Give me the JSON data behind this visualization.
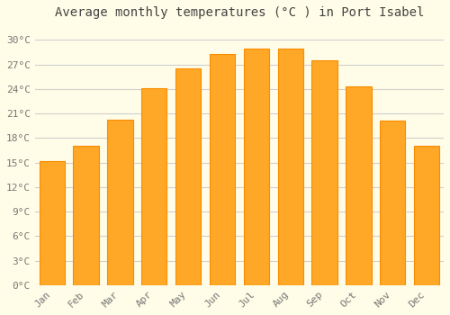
{
  "title": "Average monthly temperatures (°C ) in Port Isabel",
  "months": [
    "Jan",
    "Feb",
    "Mar",
    "Apr",
    "May",
    "Jun",
    "Jul",
    "Aug",
    "Sep",
    "Oct",
    "Nov",
    "Dec"
  ],
  "temperatures": [
    15.2,
    17.0,
    20.2,
    24.1,
    26.5,
    28.3,
    28.9,
    28.9,
    27.5,
    24.3,
    20.1,
    17.0
  ],
  "bar_color_face": "#FFA726",
  "bar_color_edge": "#FB8C00",
  "bar_width": 0.75,
  "ylim": [
    0,
    32
  ],
  "yticks": [
    0,
    3,
    6,
    9,
    12,
    15,
    18,
    21,
    24,
    27,
    30
  ],
  "background_color": "#FFFDE7",
  "grid_color": "#D0D0D0",
  "title_fontsize": 10,
  "tick_fontsize": 8,
  "title_color": "#444444",
  "tick_color": "#777777"
}
